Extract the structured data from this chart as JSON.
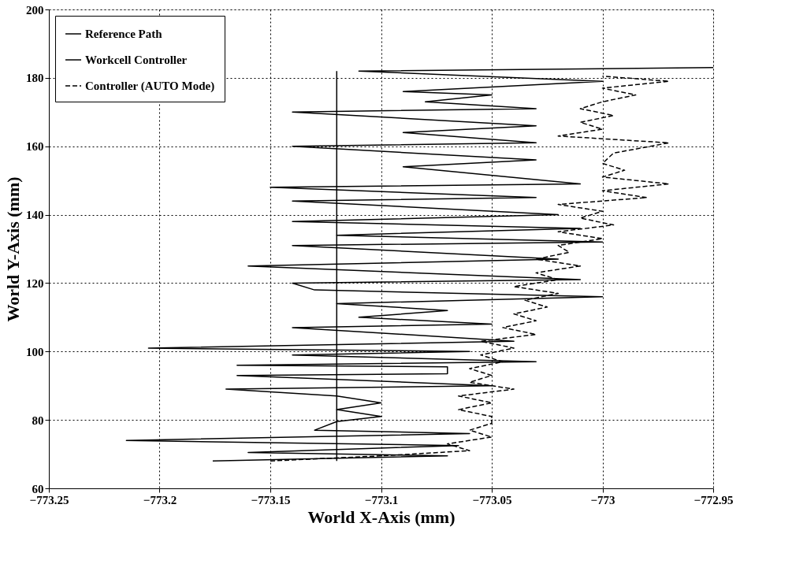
{
  "chart_data": {
    "type": "line",
    "xlabel": "World X-Axis (mm)",
    "ylabel": "World Y-Axis (mm)",
    "xlim": [
      -773.25,
      -772.95
    ],
    "xticks": [
      -773.25,
      -773.2,
      -773.15,
      -773.1,
      -773.05,
      -773,
      -772.95
    ],
    "ylim": [
      60,
      200
    ],
    "yticks": [
      60,
      80,
      100,
      120,
      140,
      160,
      180,
      200
    ],
    "grid": true,
    "legend": "top left",
    "marker": "none",
    "series": [
      {
        "name": "Reference Path",
        "color": "#000000",
        "line_style": "solid",
        "x": [
          -773.12,
          -773.12
        ],
        "values": [
          68,
          182
        ]
      },
      {
        "name": "Workcell Controller",
        "color": "#000000",
        "line_style": "solid",
        "x": [
          -773.176,
          -773.07,
          -773.16,
          -773.065,
          -773.215,
          -773.06,
          -773.13,
          -773.12,
          -773.1,
          -773.12,
          -773.1,
          -773.12,
          -773.17,
          -773.05,
          -773.165,
          -773.07,
          -773.07,
          -773.165,
          -773.03,
          -773.14,
          -773.06,
          -773.205,
          -773.04,
          -773.14,
          -773.05,
          -773.11,
          -773.07,
          -773.12,
          -773.0,
          -773.13,
          -773.14,
          -773.01,
          -773.16,
          -773.02,
          -773.14,
          -773.0,
          -773.12,
          -773.01,
          -773.14,
          -773.02,
          -773.14,
          -773.03,
          -773.15,
          -773.01,
          -773.09,
          -773.03,
          -773.14,
          -773.03,
          -773.09,
          -773.03,
          -773.14,
          -773.03,
          -773.08,
          -773.05,
          -773.09,
          -773.0,
          -773.11,
          -772.95
        ],
        "values": [
          68,
          69.5,
          70.5,
          72.5,
          74,
          76,
          77,
          79.5,
          81,
          83,
          85,
          87,
          89,
          90,
          93,
          93.5,
          95.5,
          96,
          97,
          99,
          100,
          101,
          103,
          107,
          108,
          110,
          112,
          114,
          116,
          118,
          120,
          121,
          125,
          127,
          131,
          132,
          134,
          136,
          138,
          140,
          144,
          145,
          148,
          149,
          154,
          156,
          160,
          161,
          164,
          166,
          170,
          171,
          173,
          175,
          176,
          179,
          182,
          183
        ]
      },
      {
        "name": "Controller (AUTO Mode)",
        "color": "#000000",
        "line_style": "dashed",
        "x": [
          -773.15,
          -773.1,
          -773.06,
          -773.07,
          -773.05,
          -773.06,
          -773.05,
          -773.05,
          -773.065,
          -773.05,
          -773.065,
          -773.04,
          -773.06,
          -773.05,
          -773.06,
          -773.045,
          -773.055,
          -773.04,
          -773.055,
          -773.03,
          -773.045,
          -773.03,
          -773.04,
          -773.025,
          -773.035,
          -773.02,
          -773.04,
          -773.02,
          -773.03,
          -773.01,
          -773.03,
          -773.015,
          -773.02,
          -773.0,
          -773.02,
          -772.995,
          -773.01,
          -773.0,
          -773.02,
          -772.98,
          -773.0,
          -772.97,
          -773.0,
          -772.99,
          -773.0,
          -772.995,
          -772.97,
          -773.02,
          -773.0,
          -773.01,
          -772.995,
          -773.01,
          -773.0,
          -772.985,
          -773.0,
          -772.97,
          -773.0
        ],
        "values": [
          68,
          69.5,
          71,
          73,
          75,
          77,
          79,
          81,
          83,
          85,
          87,
          89,
          91,
          93,
          95,
          97,
          99,
          101,
          103,
          105,
          107,
          109,
          111,
          113,
          115,
          117,
          119,
          121,
          123,
          125,
          127,
          129,
          131,
          133,
          135,
          137,
          139,
          141,
          143,
          145,
          147,
          149,
          151,
          153,
          155,
          158,
          161,
          163,
          165,
          167,
          169,
          171,
          173,
          175,
          177,
          179,
          180.5
        ]
      }
    ]
  }
}
